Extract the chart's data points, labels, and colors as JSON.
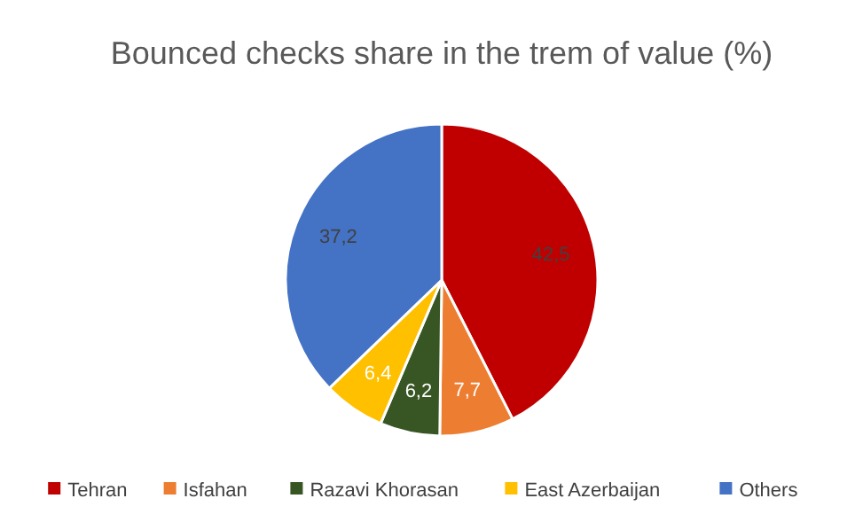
{
  "chart_data": {
    "type": "pie",
    "title": "Bounced checks share in the trem of value (%)",
    "categories": [
      "Tehran",
      "Isfahan",
      "Razavi Khorasan",
      "East Azerbaijan",
      "Others"
    ],
    "values": [
      42.5,
      7.7,
      6.2,
      6.4,
      37.2
    ],
    "value_labels": [
      "42,5",
      "7,7",
      "6,2",
      "6,4",
      "37,2"
    ],
    "colors": [
      "#c00000",
      "#ed7d31",
      "#375623",
      "#ffc000",
      "#4472c4"
    ],
    "legend": "bottom"
  }
}
